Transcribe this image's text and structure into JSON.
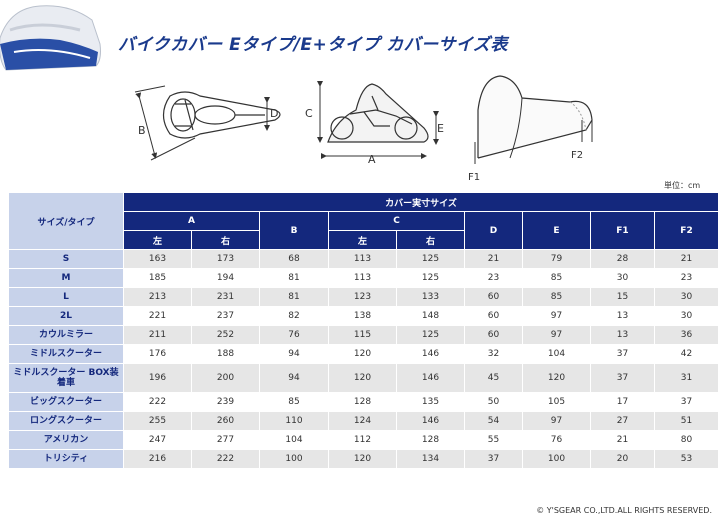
{
  "page_title": "バイクカバー Eタイプ/E+タイプ カバーサイズ表",
  "diagram_labels": {
    "top": {
      "b": "B",
      "d": "D"
    },
    "side": {
      "c": "C",
      "e": "E",
      "a": "A"
    },
    "front": {
      "f1": "F1",
      "f2": "F2"
    }
  },
  "unit_note": "単位：cm",
  "table": {
    "size_type_header": "サイズ/タイプ",
    "group_header": "カバー実寸サイズ",
    "col_a": "A",
    "col_b": "B",
    "col_c": "C",
    "col_d": "D",
    "col_e": "E",
    "col_f1": "F1",
    "col_f2": "F2",
    "left": "左",
    "right": "右",
    "rows": [
      {
        "name": "S",
        "a_l": "163",
        "a_r": "173",
        "b": "68",
        "c_l": "113",
        "c_r": "125",
        "d": "21",
        "e": "79",
        "f1": "28",
        "f2": "21"
      },
      {
        "name": "M",
        "a_l": "185",
        "a_r": "194",
        "b": "81",
        "c_l": "113",
        "c_r": "125",
        "d": "23",
        "e": "85",
        "f1": "30",
        "f2": "23"
      },
      {
        "name": "L",
        "a_l": "213",
        "a_r": "231",
        "b": "81",
        "c_l": "123",
        "c_r": "133",
        "d": "60",
        "e": "85",
        "f1": "15",
        "f2": "30"
      },
      {
        "name": "2L",
        "a_l": "221",
        "a_r": "237",
        "b": "82",
        "c_l": "138",
        "c_r": "148",
        "d": "60",
        "e": "97",
        "f1": "13",
        "f2": "30"
      },
      {
        "name": "カウルミラー",
        "a_l": "211",
        "a_r": "252",
        "b": "76",
        "c_l": "115",
        "c_r": "125",
        "d": "60",
        "e": "97",
        "f1": "13",
        "f2": "36"
      },
      {
        "name": "ミドルスクーター",
        "a_l": "176",
        "a_r": "188",
        "b": "94",
        "c_l": "120",
        "c_r": "146",
        "d": "32",
        "e": "104",
        "f1": "37",
        "f2": "42"
      },
      {
        "name": "ミドルスクーター BOX装着車",
        "a_l": "196",
        "a_r": "200",
        "b": "94",
        "c_l": "120",
        "c_r": "146",
        "d": "45",
        "e": "120",
        "f1": "37",
        "f2": "31"
      },
      {
        "name": "ビッグスクーター",
        "a_l": "222",
        "a_r": "239",
        "b": "85",
        "c_l": "128",
        "c_r": "135",
        "d": "50",
        "e": "105",
        "f1": "17",
        "f2": "37"
      },
      {
        "name": "ロングスクーター",
        "a_l": "255",
        "a_r": "260",
        "b": "110",
        "c_l": "124",
        "c_r": "146",
        "d": "54",
        "e": "97",
        "f1": "27",
        "f2": "51"
      },
      {
        "name": "アメリカン",
        "a_l": "247",
        "a_r": "277",
        "b": "104",
        "c_l": "112",
        "c_r": "128",
        "d": "55",
        "e": "76",
        "f1": "21",
        "f2": "80"
      },
      {
        "name": "トリシティ",
        "a_l": "216",
        "a_r": "222",
        "b": "100",
        "c_l": "120",
        "c_r": "134",
        "d": "37",
        "e": "100",
        "f1": "20",
        "f2": "53"
      }
    ]
  },
  "copyright": "© Y'SGEAR CO.,LTD.ALL RIGHTS RESERVED."
}
